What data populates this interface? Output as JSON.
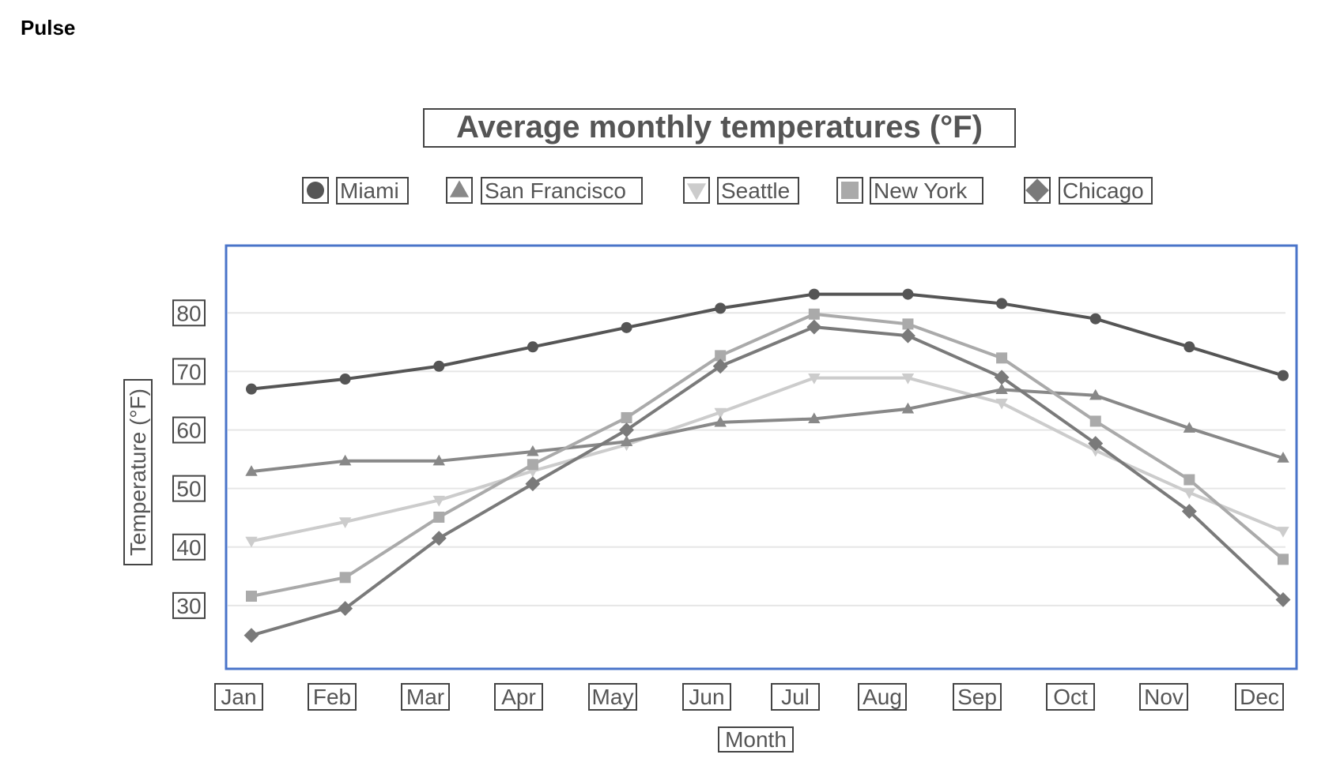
{
  "app": {
    "title": "Pulse"
  },
  "chart_data": {
    "type": "line",
    "title": "Average monthly temperatures (°F)",
    "xlabel": "Month",
    "ylabel": "Temperature (°F)",
    "categories": [
      "Jan",
      "Feb",
      "Mar",
      "Apr",
      "May",
      "Jun",
      "Jul",
      "Aug",
      "Sep",
      "Oct",
      "Nov",
      "Dec"
    ],
    "ylim": [
      20,
      88
    ],
    "yticks": [
      30,
      40,
      50,
      60,
      70,
      80
    ],
    "grid": true,
    "legend": "top",
    "series": [
      {
        "name": "Miami",
        "marker": "circle",
        "color": "#555555",
        "values": [
          67,
          68.7,
          70.9,
          74.2,
          77.5,
          80.8,
          83.2,
          83.2,
          81.6,
          79.0,
          74.2,
          69.3
        ]
      },
      {
        "name": "San Francisco",
        "marker": "triangle",
        "color": "#888888",
        "values": [
          52.9,
          54.7,
          54.7,
          56.3,
          58.0,
          61.3,
          61.9,
          63.6,
          66.9,
          65.9,
          60.3,
          55.2
        ]
      },
      {
        "name": "Seattle",
        "marker": "triangle-down",
        "color": "#cccccc",
        "values": [
          41.0,
          44.3,
          48.0,
          53.0,
          57.5,
          63.0,
          68.9,
          68.9,
          64.6,
          56.5,
          49.3,
          42.7
        ]
      },
      {
        "name": "New York",
        "marker": "square",
        "color": "#aaaaaa",
        "values": [
          31.6,
          34.8,
          45.1,
          54.1,
          62.1,
          72.7,
          79.8,
          78.1,
          72.3,
          61.5,
          51.5,
          37.9
        ]
      },
      {
        "name": "Chicago",
        "marker": "diamond",
        "color": "#7a7a7a",
        "values": [
          24.9,
          29.5,
          41.5,
          50.8,
          60.0,
          70.9,
          77.6,
          76.1,
          69.0,
          57.7,
          46.1,
          31.0
        ]
      }
    ]
  }
}
